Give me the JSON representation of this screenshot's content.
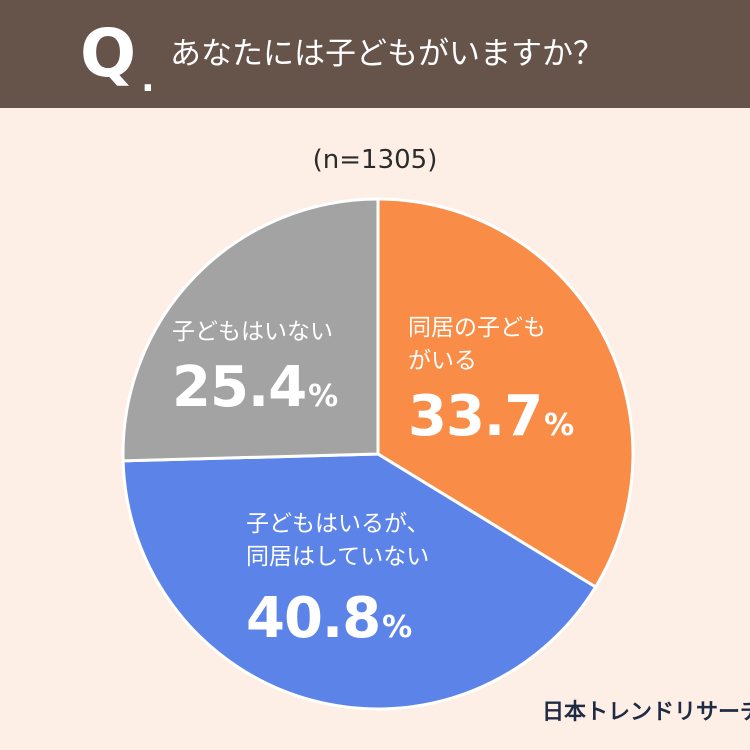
{
  "header": {
    "q_mark": "Q",
    "q_dot": ".",
    "question": "あなたには子どもがいますか？"
  },
  "sample_size": "(n=1305)",
  "brand": "日本トレンドリサーチ",
  "chart_data": {
    "type": "pie",
    "title": "あなたには子どもがいますか？",
    "slices": [
      {
        "label_line1": "同居の子ども",
        "label_line2": "がいる",
        "value": 33.7,
        "value_text": "33.7",
        "unit": "%",
        "color": "#f98d47"
      },
      {
        "label_line1": "子どもはいるが、",
        "label_line2": "同居はしていない",
        "value": 40.8,
        "value_text": "40.8",
        "unit": "%",
        "color": "#5c84e8"
      },
      {
        "label_line1": "子どもはいない",
        "label_line2": "",
        "value": 25.4,
        "value_text": "25.4",
        "unit": "%",
        "color": "#a3a3a3"
      }
    ]
  },
  "colors": {
    "background": "#fdefe5",
    "header_bg": "#66534a",
    "brand_text": "#1f2b45"
  }
}
